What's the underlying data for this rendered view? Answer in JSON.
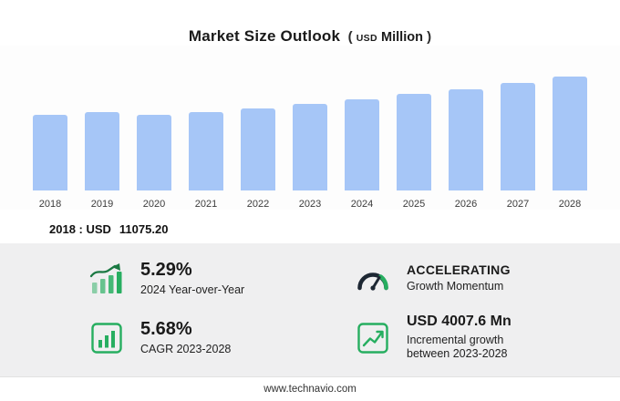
{
  "colors": {
    "bar": "#a6c6f7",
    "panel_bg": "#efeff0",
    "accent_green": "#27ae60",
    "gauge_dark": "#1d2733"
  },
  "header": {
    "title": "Market Size Outlook",
    "unit_open": "(",
    "unit_currency": "USD",
    "unit_label": "Million",
    "unit_close": ")"
  },
  "chart_data": {
    "type": "bar",
    "title": "Market Size Outlook (USD Million)",
    "categories": [
      "2018",
      "2019",
      "2020",
      "2021",
      "2022",
      "2023",
      "2024",
      "2025",
      "2026",
      "2027",
      "2028"
    ],
    "values": [
      11075.2,
      11450,
      11050,
      11420,
      12010,
      12600,
      13266,
      14050,
      14750,
      15650,
      16607
    ],
    "unit": "USD Million",
    "xlabel": "",
    "ylabel": "",
    "ylim": [
      0,
      17000
    ],
    "grid": false,
    "legend": false,
    "bar_color": "#a6c6f7",
    "note": "2018 : USD 11075.20"
  },
  "annotation": {
    "label": "2018 : USD",
    "value": "11075.20"
  },
  "stats": [
    {
      "value": "5.29%",
      "label": "2024 Year-over-Year",
      "icon": "bars-up-arrow-icon"
    },
    {
      "value": "ACCELERATING",
      "label": "Growth Momentum",
      "icon": "gauge-icon"
    },
    {
      "value": "5.68%",
      "label": "CAGR 2023-2028",
      "icon": "bar-chart-growth-icon"
    },
    {
      "value": "USD 4007.6 Mn",
      "label": "Incremental growth",
      "label2": "between 2023-2028",
      "icon": "trend-line-icon"
    }
  ],
  "footer": {
    "url": "www.technavio.com"
  }
}
